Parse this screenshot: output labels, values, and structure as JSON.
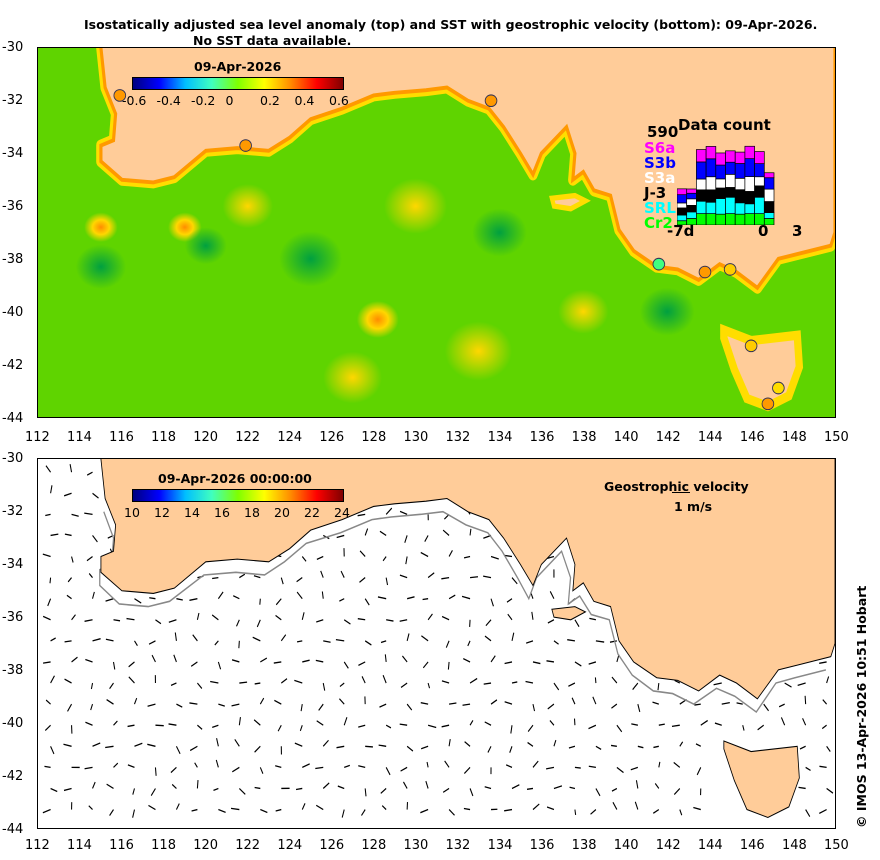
{
  "title": {
    "line1": "Isostatically adjusted sea level anomaly (top) and SST with geostrophic velocity (bottom): 09-Apr-2026.",
    "line2": "No SST data available."
  },
  "axes": {
    "lon_ticks": [
      "112",
      "114",
      "116",
      "118",
      "120",
      "122",
      "124",
      "126",
      "128",
      "130",
      "132",
      "134",
      "136",
      "138",
      "140",
      "142",
      "144",
      "146",
      "148",
      "150"
    ],
    "lat_ticks": [
      "-30",
      "-32",
      "-34",
      "-36",
      "-38",
      "-40",
      "-42",
      "-44"
    ]
  },
  "top_colorbar": {
    "title": "09-Apr-2026",
    "ticks": [
      "-0.6",
      "-0.4",
      "-0.2",
      "0",
      "0.2",
      "0.4",
      "0.6"
    ],
    "range": [
      -0.6,
      0.6
    ]
  },
  "bottom_colorbar": {
    "title": "09-Apr-2026 00:00:00",
    "ticks": [
      "10",
      "12",
      "14",
      "16",
      "18",
      "20",
      "22",
      "24"
    ],
    "range": [
      10,
      24
    ]
  },
  "velocity_legend": {
    "title": "Geostrophic velocity",
    "scale": "1 m/s"
  },
  "data_count": {
    "title": "Data count",
    "max_label": "590",
    "satellites": [
      {
        "name": "S6a",
        "color": "#ff00ff"
      },
      {
        "name": "S3b",
        "color": "#0000ff"
      },
      {
        "name": "S3a",
        "color": "#ffffff"
      },
      {
        "name": "J-3",
        "color": "#000000"
      },
      {
        "name": "SRL",
        "color": "#00ffff"
      },
      {
        "name": "Cr2",
        "color": "#00ff00"
      }
    ],
    "x_labels": [
      "-7d",
      "0",
      "3"
    ],
    "bars": [
      [
        41,
        58,
        35,
        50,
        40,
        30
      ],
      [
        30,
        39,
        46,
        46,
        46,
        46
      ],
      [
        87,
        120,
        76,
        80,
        87,
        80
      ],
      [
        87,
        126,
        92,
        87,
        80,
        80
      ],
      [
        85,
        97,
        64,
        74,
        110,
        76
      ],
      [
        80,
        85,
        92,
        69,
        115,
        80
      ],
      [
        80,
        104,
        80,
        92,
        80,
        76
      ],
      [
        87,
        126,
        104,
        87,
        69,
        80
      ],
      [
        85,
        92,
        64,
        80,
        115,
        80
      ],
      [
        35,
        80,
        87,
        78,
        41,
        46
      ]
    ],
    "max": 590
  },
  "copyright": "© IMOS 13-Apr-2026 10:51 Hobart"
}
